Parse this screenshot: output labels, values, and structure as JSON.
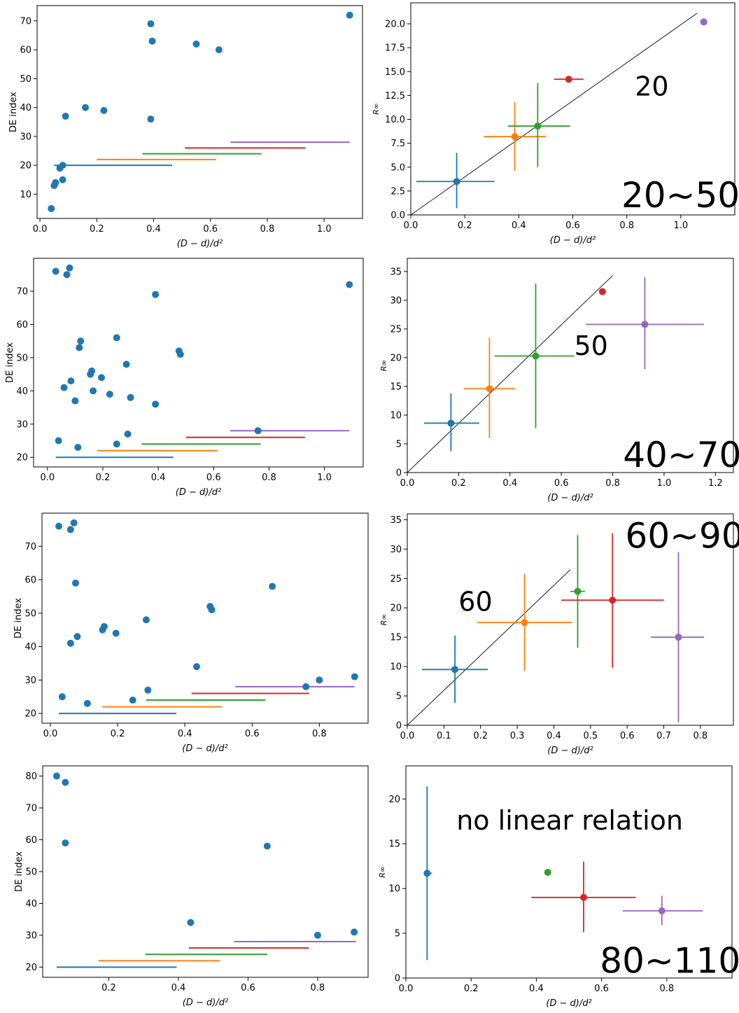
{
  "chart_data": [
    {
      "type": "scatter",
      "xlabel": "(D − d)/d²",
      "ylabel": "DE index",
      "xlim": [
        -0.01,
        1.135
      ],
      "ylim": [
        1.6,
        75.3
      ],
      "xticks": [
        0.0,
        0.2,
        0.4,
        0.6,
        0.8,
        1.0
      ],
      "yticks": [
        10,
        20,
        30,
        40,
        50,
        60,
        70
      ],
      "points": [
        [
          0.04,
          5
        ],
        [
          0.05,
          13
        ],
        [
          0.055,
          14
        ],
        [
          0.07,
          19
        ],
        [
          0.08,
          15
        ],
        [
          0.08,
          20
        ],
        [
          0.09,
          37
        ],
        [
          0.16,
          40
        ],
        [
          0.225,
          39
        ],
        [
          0.39,
          36
        ],
        [
          0.39,
          69
        ],
        [
          0.395,
          63
        ],
        [
          0.55,
          62
        ],
        [
          0.63,
          60
        ],
        [
          1.09,
          72
        ]
      ],
      "ranges": [
        {
          "y": 20,
          "x0": 0.05,
          "x1": 0.465,
          "color": "#1f77b4"
        },
        {
          "y": 22,
          "x0": 0.2,
          "x1": 0.62,
          "color": "#ff7f0e"
        },
        {
          "y": 24,
          "x0": 0.36,
          "x1": 0.78,
          "color": "#2ca02c"
        },
        {
          "y": 26,
          "x0": 0.51,
          "x1": 0.935,
          "color": "#d62728"
        },
        {
          "y": 28,
          "x0": 0.67,
          "x1": 1.09,
          "color": "#9467bd"
        }
      ]
    },
    {
      "type": "scatter",
      "xlabel": "(D − d)/d²",
      "ylabel": "R∞",
      "xlim": [
        0,
        1.2
      ],
      "ylim": [
        0,
        22.2
      ],
      "xticks": [
        0.0,
        0.2,
        0.4,
        0.6,
        0.8,
        1.0
      ],
      "yticks": [
        0.0,
        2.5,
        5.0,
        7.5,
        10.0,
        12.5,
        15.0,
        17.5,
        20.0
      ],
      "ytick_decimals": 1,
      "fit_line": [
        [
          0,
          0
        ],
        [
          1.06,
          21.1
        ]
      ],
      "points": [
        {
          "x": 0.17,
          "y": 3.5,
          "xerr": [
            0.02,
            0.31
          ],
          "yerr": [
            0.7,
            6.5
          ],
          "color": "#1f77b4"
        },
        {
          "x": 0.385,
          "y": 8.2,
          "xerr": [
            0.27,
            0.5
          ],
          "yerr": [
            4.6,
            11.8
          ],
          "color": "#ff7f0e"
        },
        {
          "x": 0.47,
          "y": 9.3,
          "xerr": [
            0.36,
            0.59
          ],
          "yerr": [
            5,
            13.8
          ],
          "color": "#2ca02c"
        },
        {
          "x": 0.585,
          "y": 14.2,
          "xerr": [
            0.53,
            0.64
          ],
          "yerr": null,
          "color": "#d62728"
        },
        {
          "x": 1.085,
          "y": 20.2,
          "xerr": null,
          "yerr": null,
          "color": "#9467bd"
        }
      ],
      "annotations": [
        {
          "text": "20",
          "x": 0.83,
          "y": 12.5,
          "size": 38
        },
        {
          "text": "20~50",
          "x": 0.78,
          "y": 0.8,
          "size": 50
        }
      ]
    },
    {
      "type": "scatter",
      "xlabel": "(D − d)/d²",
      "ylabel": "DE index",
      "xlim": [
        -0.05,
        1.14
      ],
      "ylim": [
        17.1,
        79.9
      ],
      "xticks": [
        0.0,
        0.2,
        0.4,
        0.6,
        0.8,
        1.0
      ],
      "yticks": [
        20,
        30,
        40,
        50,
        60,
        70
      ],
      "points": [
        [
          0.03,
          76
        ],
        [
          0.07,
          75
        ],
        [
          0.08,
          77
        ],
        [
          0.04,
          25
        ],
        [
          0.06,
          41
        ],
        [
          0.085,
          43
        ],
        [
          0.1,
          37
        ],
        [
          0.11,
          23
        ],
        [
          0.115,
          53
        ],
        [
          0.12,
          55
        ],
        [
          0.155,
          45
        ],
        [
          0.16,
          46
        ],
        [
          0.165,
          40
        ],
        [
          0.195,
          44
        ],
        [
          0.225,
          39
        ],
        [
          0.25,
          24
        ],
        [
          0.25,
          56
        ],
        [
          0.285,
          48
        ],
        [
          0.29,
          27
        ],
        [
          0.3,
          38
        ],
        [
          0.39,
          36
        ],
        [
          0.39,
          69
        ],
        [
          0.475,
          52
        ],
        [
          0.48,
          51
        ],
        [
          0.76,
          28
        ],
        [
          1.09,
          72
        ]
      ],
      "ranges": [
        {
          "y": 20,
          "x0": 0.03,
          "x1": 0.455,
          "color": "#1f77b4"
        },
        {
          "y": 22,
          "x0": 0.18,
          "x1": 0.615,
          "color": "#ff7f0e"
        },
        {
          "y": 24,
          "x0": 0.34,
          "x1": 0.77,
          "color": "#2ca02c"
        },
        {
          "y": 26,
          "x0": 0.5,
          "x1": 0.93,
          "color": "#d62728"
        },
        {
          "y": 28,
          "x0": 0.66,
          "x1": 1.09,
          "color": "#9467bd"
        }
      ]
    },
    {
      "type": "scatter",
      "xlabel": "(D − d)/d²",
      "ylabel": "R∞",
      "xlim": [
        0,
        1.27
      ],
      "ylim": [
        0,
        37.3
      ],
      "xticks": [
        0.0,
        0.2,
        0.4,
        0.6,
        0.8,
        1.0,
        1.2
      ],
      "yticks": [
        0,
        5,
        10,
        15,
        20,
        25,
        30,
        35
      ],
      "fit_line": [
        [
          0,
          0
        ],
        [
          0.8,
          34.3
        ]
      ],
      "points": [
        {
          "x": 0.17,
          "y": 8.6,
          "xerr": [
            0.065,
            0.28
          ],
          "yerr": [
            3.7,
            13.8
          ],
          "color": "#1f77b4"
        },
        {
          "x": 0.32,
          "y": 14.6,
          "xerr": [
            0.22,
            0.42
          ],
          "yerr": [
            6,
            23.5
          ],
          "color": "#ff7f0e"
        },
        {
          "x": 0.5,
          "y": 20.3,
          "xerr": [
            0.34,
            0.65
          ],
          "yerr": [
            7.7,
            32.9
          ],
          "color": "#2ca02c"
        },
        {
          "x": 0.76,
          "y": 31.5,
          "xerr": null,
          "yerr": null,
          "color": "#d62728"
        },
        {
          "x": 0.925,
          "y": 25.8,
          "xerr": [
            0.695,
            1.155
          ],
          "yerr": [
            18,
            34
          ],
          "color": "#9467bd"
        }
      ],
      "annotations": [
        {
          "text": "50",
          "x": 0.65,
          "y": 20.5,
          "size": 38
        },
        {
          "text": "40~70",
          "x": 0.84,
          "y": 1.0,
          "size": 50
        }
      ]
    },
    {
      "type": "scatter",
      "xlabel": "(D − d)/d²",
      "ylabel": "DE index",
      "xlim": [
        -0.025,
        0.945
      ],
      "ylim": [
        17.1,
        79.9
      ],
      "xticks": [
        0.0,
        0.2,
        0.4,
        0.6,
        0.8
      ],
      "yticks": [
        20,
        30,
        40,
        50,
        60,
        70
      ],
      "points": [
        [
          0.025,
          76
        ],
        [
          0.06,
          75
        ],
        [
          0.07,
          77
        ],
        [
          0.075,
          59
        ],
        [
          0.035,
          25
        ],
        [
          0.06,
          41
        ],
        [
          0.08,
          43
        ],
        [
          0.11,
          23
        ],
        [
          0.155,
          45
        ],
        [
          0.16,
          46
        ],
        [
          0.195,
          44
        ],
        [
          0.245,
          24
        ],
        [
          0.285,
          48
        ],
        [
          0.29,
          27
        ],
        [
          0.435,
          34
        ],
        [
          0.475,
          52
        ],
        [
          0.48,
          51
        ],
        [
          0.66,
          58
        ],
        [
          0.76,
          28
        ],
        [
          0.8,
          30
        ],
        [
          0.905,
          31
        ]
      ],
      "ranges": [
        {
          "y": 20,
          "x0": 0.025,
          "x1": 0.375,
          "color": "#1f77b4"
        },
        {
          "y": 22,
          "x0": 0.155,
          "x1": 0.51,
          "color": "#ff7f0e"
        },
        {
          "y": 24,
          "x0": 0.285,
          "x1": 0.64,
          "color": "#2ca02c"
        },
        {
          "y": 26,
          "x0": 0.42,
          "x1": 0.77,
          "color": "#d62728"
        },
        {
          "y": 28,
          "x0": 0.55,
          "x1": 0.905,
          "color": "#9467bd"
        }
      ]
    },
    {
      "type": "scatter",
      "xlabel": "(D − d)/d²",
      "ylabel": "R∞",
      "xlim": [
        0,
        0.89
      ],
      "ylim": [
        0,
        36
      ],
      "xticks": [
        0.0,
        0.1,
        0.2,
        0.3,
        0.4,
        0.5,
        0.6,
        0.7,
        0.8
      ],
      "yticks": [
        0,
        5,
        10,
        15,
        20,
        25,
        30,
        35
      ],
      "fit_line": [
        [
          0,
          0
        ],
        [
          0.445,
          26.5
        ]
      ],
      "points": [
        {
          "x": 0.13,
          "y": 9.5,
          "xerr": [
            0.04,
            0.22
          ],
          "yerr": [
            3.8,
            15.3
          ],
          "color": "#1f77b4"
        },
        {
          "x": 0.32,
          "y": 17.5,
          "xerr": [
            0.19,
            0.45
          ],
          "yerr": [
            9.3,
            25.8
          ],
          "color": "#ff7f0e"
        },
        {
          "x": 0.465,
          "y": 22.8,
          "xerr": [
            0.445,
            0.485
          ],
          "yerr": [
            13.2,
            32.4
          ],
          "color": "#2ca02c"
        },
        {
          "x": 0.56,
          "y": 21.3,
          "xerr": [
            0.42,
            0.7
          ],
          "yerr": [
            9.8,
            32.7
          ],
          "color": "#d62728"
        },
        {
          "x": 0.74,
          "y": 15,
          "xerr": [
            0.665,
            0.81
          ],
          "yerr": [
            0.5,
            29.5
          ],
          "color": "#9467bd"
        }
      ],
      "annotations": [
        {
          "text": "60",
          "x": 0.14,
          "y": 19.5,
          "size": 38
        },
        {
          "text": "60~90",
          "x": 0.595,
          "y": 30.2,
          "size": 50
        }
      ]
    },
    {
      "type": "scatter",
      "xlabel": "(D − d)/d²",
      "ylabel": "DE index",
      "xlim": [
        0.01,
        0.945
      ],
      "ylim": [
        16.8,
        83.2
      ],
      "xticks": [
        0.2,
        0.4,
        0.6,
        0.8
      ],
      "yticks": [
        20,
        30,
        40,
        50,
        60,
        70,
        80
      ],
      "points": [
        [
          0.05,
          80
        ],
        [
          0.075,
          78
        ],
        [
          0.075,
          59
        ],
        [
          0.435,
          34
        ],
        [
          0.655,
          58
        ],
        [
          0.8,
          30
        ],
        [
          0.905,
          31
        ]
      ],
      "ranges": [
        {
          "y": 20,
          "x0": 0.05,
          "x1": 0.395,
          "color": "#1f77b4"
        },
        {
          "y": 22,
          "x0": 0.17,
          "x1": 0.52,
          "color": "#ff7f0e"
        },
        {
          "y": 24,
          "x0": 0.305,
          "x1": 0.655,
          "color": "#2ca02c"
        },
        {
          "y": 26,
          "x0": 0.43,
          "x1": 0.775,
          "color": "#d62728"
        },
        {
          "y": 28,
          "x0": 0.56,
          "x1": 0.91,
          "color": "#9467bd"
        }
      ]
    },
    {
      "type": "scatter",
      "xlabel": "(D − d)/d²",
      "ylabel": "R∞",
      "xlim": [
        0,
        1.0
      ],
      "ylim": [
        0,
        23.7
      ],
      "xticks": [
        0.0,
        0.2,
        0.4,
        0.6,
        0.8
      ],
      "yticks": [
        0,
        5,
        10,
        15,
        20
      ],
      "fit_line": null,
      "points": [
        {
          "x": 0.065,
          "y": 11.7,
          "xerr": [
            0.055,
            0.08
          ],
          "yerr": [
            2,
            21.4
          ],
          "color": "#1f77b4"
        },
        {
          "x": 0.435,
          "y": 11.8,
          "xerr": null,
          "yerr": null,
          "color": "#2ca02c"
        },
        {
          "x": 0.545,
          "y": 9,
          "xerr": [
            0.385,
            0.705
          ],
          "yerr": [
            5.1,
            13
          ],
          "color": "#d62728"
        },
        {
          "x": 0.785,
          "y": 7.5,
          "xerr": [
            0.665,
            0.91
          ],
          "yerr": [
            5.9,
            9.2
          ],
          "color": "#9467bd"
        }
      ],
      "annotations": [
        {
          "text": "no linear relation",
          "x": 0.155,
          "y": 16.6,
          "size": 38
        },
        {
          "text": "80~110",
          "x": 0.595,
          "y": 0.6,
          "size": 50
        }
      ]
    }
  ]
}
